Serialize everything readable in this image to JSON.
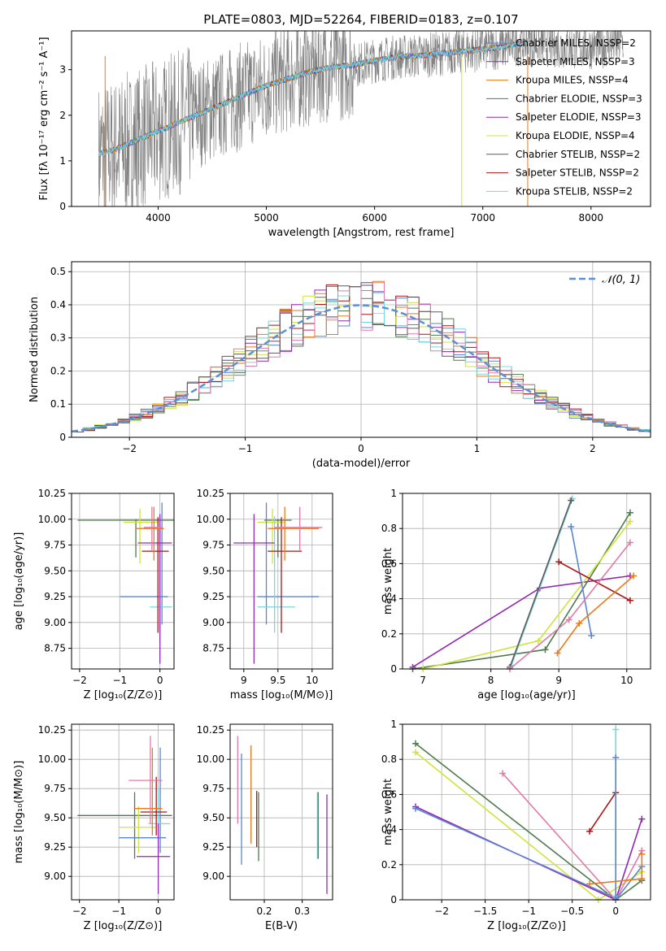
{
  "title": "PLATE=0803, MJD=52264, FIBERID=0183, z=0.107",
  "colors": {
    "chabrier_miles": "#5b84d6",
    "salpeter_miles": "#8e2db7",
    "kroupa_miles": "#ea7a1a",
    "chabrier_elodie": "#4e7a4e",
    "salpeter_elodie": "#9226b0",
    "kroupa_elodie": "#cfe43a",
    "chabrier_stelib": "#5a5a5a",
    "salpeter_stelib": "#aa1515",
    "kroupa_stelib": "#74d8e0",
    "pink": "#e07aa8",
    "data": "#808080"
  },
  "chart_data": [
    {
      "id": "spectrum",
      "type": "line",
      "xlabel": "wavelength [Angstrom, rest frame]",
      "ylabel": "Flux [fλ 10⁻¹⁷ erg cm⁻² s⁻¹ A⁻¹]",
      "xlim": [
        3200,
        8550
      ],
      "ylim": [
        0,
        3.85
      ],
      "xticks": [
        4000,
        5000,
        6000,
        7000,
        8000
      ],
      "yticks": [
        0,
        1,
        2,
        3
      ],
      "legend_position": "top-right",
      "legend": [
        "Chabrier MILES, NSSP=2",
        "Salpeter MILES, NSSP=3",
        "Kroupa MILES, NSSP=4",
        "Chabrier ELODIE, NSSP=3",
        "Salpeter ELODIE, NSSP=3",
        "Kroupa ELODIE, NSSP=4",
        "Chabrier STELIB, NSSP=2",
        "Salpeter STELIB, NSSP=2",
        "Kroupa STELIB, NSSP=2"
      ],
      "model_continuum": {
        "x": [
          3450,
          3600,
          3800,
          4000,
          4200,
          4400,
          4600,
          4800,
          5000,
          5200,
          5400,
          5600,
          5800,
          6000,
          6200,
          6400,
          6600,
          6800,
          7000,
          7200,
          7400
        ],
        "y": [
          1.15,
          1.25,
          1.45,
          1.65,
          1.85,
          2.05,
          2.25,
          2.45,
          2.65,
          2.8,
          2.95,
          3.05,
          3.1,
          3.2,
          3.28,
          3.3,
          3.35,
          3.4,
          3.45,
          3.5,
          3.6
        ]
      },
      "data_continuum": {
        "x": [
          3450,
          3600,
          3800,
          4000,
          4200,
          4400,
          4600,
          4800,
          5000,
          5200,
          5400,
          5600,
          5800,
          6000,
          6200,
          6400,
          6600,
          6800,
          7000,
          7200,
          7400,
          7600,
          7800,
          8000,
          8200,
          8300
        ],
        "y": [
          1.15,
          1.25,
          1.45,
          1.65,
          1.85,
          2.05,
          2.25,
          2.45,
          2.65,
          2.8,
          2.95,
          3.05,
          3.1,
          3.2,
          3.28,
          3.3,
          3.35,
          3.4,
          3.45,
          3.5,
          3.6,
          3.55,
          3.5,
          3.5,
          3.55,
          3.6
        ]
      }
    },
    {
      "id": "residuals",
      "type": "line",
      "xlabel": "(data-model)/error",
      "ylabel": "Normed distribution",
      "xlim": [
        -2.5,
        2.5
      ],
      "ylim": [
        0,
        0.53
      ],
      "xticks": [
        -2,
        -1,
        0,
        1,
        2
      ],
      "yticks": [
        0,
        0.1,
        0.2,
        0.3,
        0.4,
        0.5
      ],
      "legend_position": "top-right",
      "legend": [
        "𝒩(0, 1)"
      ],
      "bin_width": 0.1
    },
    {
      "id": "age_Z",
      "type": "scatter",
      "xlabel": "Z [log₁₀(Z/Z⊙)]",
      "ylabel": "age  [log₁₀(age/yr)]",
      "xlim": [
        -2.2,
        0.35
      ],
      "ylim": [
        8.55,
        10.25
      ],
      "xticks": [
        -2,
        -1,
        0
      ],
      "yticks": [
        8.75,
        9.0,
        9.25,
        9.5,
        9.75,
        10.0,
        10.25
      ],
      "points": [
        {
          "c": "chabrier_elodie",
          "x": -0.6,
          "xe": [
            -2.05,
            0.35
          ],
          "y": 9.99,
          "ye": [
            9.63,
            10.0
          ]
        },
        {
          "c": "kroupa_elodie",
          "x": -0.5,
          "xe": [
            -0.9,
            -0.05
          ],
          "y": 9.97,
          "ye": [
            9.57,
            10.1
          ]
        },
        {
          "c": "chabrier_miles",
          "x": 0.05,
          "xe": [
            -1.0,
            0.2
          ],
          "y": 9.25,
          "ye": [
            8.98,
            10.16
          ]
        },
        {
          "c": "kroupa_stelib",
          "x": 0.0,
          "xe": [
            -0.25,
            0.3
          ],
          "y": 9.15,
          "ye": [
            8.9,
            10.03
          ]
        },
        {
          "c": "salpeter_miles",
          "x": 0.0,
          "xe": [
            -0.55,
            0.3
          ],
          "y": 9.77,
          "ye": [
            8.6,
            10.05
          ]
        },
        {
          "c": "salpeter_stelib",
          "x": -0.05,
          "xe": [
            -0.45,
            0.22
          ],
          "y": 9.69,
          "ye": [
            8.9,
            10.02
          ]
        },
        {
          "c": "kroupa_miles",
          "x": -0.15,
          "xe": [
            -0.6,
            0.1
          ],
          "y": 9.91,
          "ye": [
            9.6,
            10.12
          ]
        },
        {
          "c": "pink",
          "x": -0.2,
          "xe": [
            -0.4,
            0.05
          ],
          "y": 9.92,
          "ye": [
            9.7,
            10.12
          ]
        }
      ]
    },
    {
      "id": "age_mass",
      "type": "scatter",
      "xlabel": "mass [log₁₀(M/M⊙)]",
      "ylabel": "",
      "xlim": [
        8.8,
        10.3
      ],
      "ylim": [
        8.55,
        10.25
      ],
      "xticks": [
        9.0,
        9.5,
        10.0
      ],
      "yticks": [
        8.75,
        9.0,
        9.25,
        9.5,
        9.75,
        10.0,
        10.25
      ],
      "points": [
        {
          "c": "chabrier_elodie",
          "x": 9.5,
          "xe": [
            9.3,
            9.7
          ],
          "y": 9.99,
          "ye": [
            9.63,
            10.0
          ]
        },
        {
          "c": "kroupa_elodie",
          "x": 9.42,
          "xe": [
            9.2,
            9.6
          ],
          "y": 9.97,
          "ye": [
            9.57,
            10.1
          ]
        },
        {
          "c": "chabrier_miles",
          "x": 9.33,
          "xe": [
            9.2,
            10.1
          ],
          "y": 9.25,
          "ye": [
            8.98,
            10.16
          ]
        },
        {
          "c": "kroupa_stelib",
          "x": 9.45,
          "xe": [
            9.2,
            9.75
          ],
          "y": 9.15,
          "ye": [
            8.9,
            10.03
          ]
        },
        {
          "c": "salpeter_miles",
          "x": 9.15,
          "xe": [
            8.85,
            9.45
          ],
          "y": 9.77,
          "ye": [
            8.6,
            10.05
          ]
        },
        {
          "c": "salpeter_stelib",
          "x": 9.55,
          "xe": [
            9.35,
            9.85
          ],
          "y": 9.69,
          "ye": [
            8.9,
            10.02
          ]
        },
        {
          "c": "kroupa_miles",
          "x": 9.6,
          "xe": [
            9.35,
            10.1
          ],
          "y": 9.91,
          "ye": [
            9.6,
            10.12
          ]
        },
        {
          "c": "pink",
          "x": 9.82,
          "xe": [
            9.45,
            10.15
          ],
          "y": 9.92,
          "ye": [
            9.7,
            10.12
          ]
        }
      ]
    },
    {
      "id": "weight_age",
      "type": "line",
      "xlabel": "age  [log₁₀(age/yr)]",
      "ylabel": "mass weight",
      "xlim": [
        6.7,
        10.35
      ],
      "ylim": [
        0,
        1.0
      ],
      "xticks": [
        7,
        8,
        9,
        10
      ],
      "yticks": [
        0.0,
        0.2,
        0.4,
        0.6,
        0.8,
        1.0
      ],
      "series": [
        {
          "c": "salpeter_elodie",
          "x": [
            6.85,
            8.72,
            10.05
          ],
          "y": [
            0.01,
            0.46,
            0.53
          ]
        },
        {
          "c": "chabrier_elodie",
          "x": [
            6.85,
            8.8,
            10.05
          ],
          "y": [
            0.0,
            0.11,
            0.89
          ]
        },
        {
          "c": "kroupa_elodie",
          "x": [
            7.0,
            8.7,
            10.05
          ],
          "y": [
            0.0,
            0.16,
            0.84
          ]
        },
        {
          "c": "chabrier_miles",
          "x": 9.18,
          "y": 0.0,
          "xs": [
            9.18,
            9.48
          ],
          "ys": [
            0.81,
            0.19
          ]
        },
        {
          "c": "kroupa_stelib",
          "x": [
            8.3,
            9.2
          ],
          "y": [
            0.02,
            0.97
          ]
        },
        {
          "c": "chabrier_stelib",
          "x": [
            8.28,
            9.18
          ],
          "y": [
            0.01,
            0.96
          ]
        },
        {
          "c": "salpeter_stelib",
          "x": [
            9.0,
            10.05
          ],
          "y": [
            0.61,
            0.39
          ]
        },
        {
          "c": "kroupa_miles",
          "x": [
            8.98,
            9.3,
            10.1
          ],
          "y": [
            0.09,
            0.26,
            0.53
          ]
        },
        {
          "c": "pink",
          "x": [
            8.28,
            9.15,
            10.05
          ],
          "y": [
            0.0,
            0.28,
            0.72
          ]
        }
      ]
    },
    {
      "id": "mass_Z",
      "type": "scatter",
      "xlabel": "Z [log₁₀(Z/Z⊙)]",
      "ylabel": "mass [log₁₀(M/M⊙)]",
      "xlim": [
        -2.2,
        0.4
      ],
      "ylim": [
        8.8,
        10.3
      ],
      "xticks": [
        -2,
        -1,
        0
      ],
      "yticks": [
        9.0,
        9.25,
        9.5,
        9.75,
        10.0,
        10.25
      ],
      "points": [
        {
          "c": "chabrier_elodie",
          "x": -0.6,
          "xe": [
            -2.05,
            0.35
          ],
          "y": 9.52,
          "ye": [
            9.15,
            9.72
          ]
        },
        {
          "c": "kroupa_elodie",
          "x": -0.5,
          "xe": [
            -1.0,
            -0.05
          ],
          "y": 9.42,
          "ye": [
            9.2,
            9.6
          ]
        },
        {
          "c": "chabrier_miles",
          "x": 0.05,
          "xe": [
            -1.0,
            0.2
          ],
          "y": 9.33,
          "ye": [
            9.2,
            10.1
          ]
        },
        {
          "c": "kroupa_stelib",
          "x": 0.0,
          "xe": [
            -0.25,
            0.3
          ],
          "y": 9.45,
          "ye": [
            9.2,
            9.75
          ]
        },
        {
          "c": "salpeter_miles",
          "x": 0.0,
          "xe": [
            -0.55,
            0.3
          ],
          "y": 9.17,
          "ye": [
            8.85,
            9.45
          ]
        },
        {
          "c": "salpeter_stelib",
          "x": -0.05,
          "xe": [
            -0.45,
            0.22
          ],
          "y": 9.55,
          "ye": [
            9.35,
            9.85
          ]
        },
        {
          "c": "kroupa_miles",
          "x": -0.15,
          "xe": [
            -0.6,
            0.1
          ],
          "y": 9.58,
          "ye": [
            9.35,
            10.1
          ]
        },
        {
          "c": "pink",
          "x": -0.2,
          "xe": [
            -0.75,
            0.1
          ],
          "y": 9.82,
          "ye": [
            9.45,
            10.2
          ]
        }
      ]
    },
    {
      "id": "mass_ebv",
      "type": "scatter",
      "xlabel": "E(B-V)",
      "ylabel": "",
      "xlim": [
        0.11,
        0.38
      ],
      "ylim": [
        8.8,
        10.3
      ],
      "xticks": [
        0.2,
        0.3
      ],
      "yticks": [
        9.0,
        9.25,
        9.5,
        9.75,
        10.0,
        10.25
      ],
      "points": [
        {
          "c": "pink",
          "x": 0.13,
          "ye": [
            9.45,
            10.2
          ]
        },
        {
          "c": "chabrier_miles",
          "x": 0.14,
          "ye": [
            9.1,
            10.05
          ]
        },
        {
          "c": "kroupa_miles",
          "x": 0.165,
          "ye": [
            9.28,
            10.12
          ]
        },
        {
          "c": "salpeter_stelib",
          "x": 0.18,
          "ye": [
            9.25,
            9.73
          ]
        },
        {
          "c": "chabrier_elodie",
          "x": 0.185,
          "ye": [
            9.13,
            9.72
          ]
        },
        {
          "c": "kroupa_stelib",
          "x": 0.34,
          "ye": [
            9.15,
            9.72
          ]
        },
        {
          "c": "chabrier_elodie",
          "x": 0.342,
          "ye": [
            9.15,
            9.72
          ]
        },
        {
          "c": "salpeter_miles",
          "x": 0.365,
          "ye": [
            8.85,
            9.7
          ]
        }
      ]
    },
    {
      "id": "weight_Z",
      "type": "line",
      "xlabel": "Z [log₁₀(Z/Z⊙)]",
      "ylabel": "mass weight",
      "xlim": [
        -2.45,
        0.4
      ],
      "ylim": [
        0,
        1.0
      ],
      "xticks": [
        -2.0,
        -1.5,
        -1.0,
        -0.5,
        0.0
      ],
      "yticks": [
        0.0,
        0.2,
        0.4,
        0.6,
        0.8,
        1.0
      ],
      "series": [
        {
          "c": "chabrier_elodie",
          "x": [
            -2.3,
            0.0,
            0.3
          ],
          "y": [
            0.89,
            0.0,
            0.11
          ]
        },
        {
          "c": "kroupa_elodie",
          "x": [
            -2.3,
            -0.2,
            0.3
          ],
          "y": [
            0.84,
            0.0,
            0.16
          ]
        },
        {
          "c": "salpeter_elodie",
          "x": [
            -2.3,
            0.0,
            0.3
          ],
          "y": [
            0.53,
            0.0,
            0.46
          ]
        },
        {
          "c": "chabrier_miles",
          "x": [
            -2.3,
            0.0
          ],
          "y": [
            0.52,
            0.01
          ]
        },
        {
          "c": "salpeter_stelib",
          "x": [
            -0.3,
            0.0
          ],
          "y": [
            0.39,
            0.61
          ]
        },
        {
          "c": "pink",
          "x": [
            -1.3,
            0.0,
            0.3
          ],
          "y": [
            0.72,
            0.0,
            0.28
          ]
        },
        {
          "c": "kroupa_stelib",
          "x": [
            0.0,
            0.0
          ],
          "y": [
            0.02,
            0.97
          ]
        },
        {
          "c": "chabrier_miles",
          "x": [
            0.0,
            0.0,
            0.3
          ],
          "y": [
            0.81,
            0.0,
            0.19
          ]
        },
        {
          "c": "kroupa_miles",
          "x": [
            -0.3,
            0.3,
            0.3
          ],
          "y": [
            0.09,
            0.12,
            0.26
          ]
        }
      ]
    }
  ]
}
